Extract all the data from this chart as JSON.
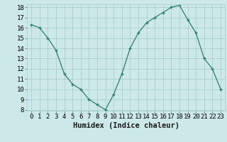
{
  "x": [
    0,
    1,
    2,
    3,
    4,
    5,
    6,
    7,
    8,
    9,
    10,
    11,
    12,
    13,
    14,
    15,
    16,
    17,
    18,
    19,
    20,
    21,
    22,
    23
  ],
  "y": [
    16.3,
    16.0,
    15.0,
    13.8,
    11.5,
    10.5,
    10.0,
    9.0,
    8.5,
    8.0,
    9.5,
    11.5,
    14.0,
    15.5,
    16.5,
    17.0,
    17.5,
    18.0,
    18.2,
    16.8,
    15.5,
    13.0,
    12.0,
    10.0
  ],
  "xlabel": "Humidex (Indice chaleur)",
  "ylim": [
    8,
    18
  ],
  "xlim": [
    -0.5,
    23.5
  ],
  "yticks": [
    8,
    9,
    10,
    11,
    12,
    13,
    14,
    15,
    16,
    17,
    18
  ],
  "xticks": [
    0,
    1,
    2,
    3,
    4,
    5,
    6,
    7,
    8,
    9,
    10,
    11,
    12,
    13,
    14,
    15,
    16,
    17,
    18,
    19,
    20,
    21,
    22,
    23
  ],
  "line_color": "#2e7d6e",
  "marker": "+",
  "bg_color": "#cce8e8",
  "grid_color": "#aacece",
  "label_fontsize": 7.5,
  "tick_fontsize": 6.5
}
